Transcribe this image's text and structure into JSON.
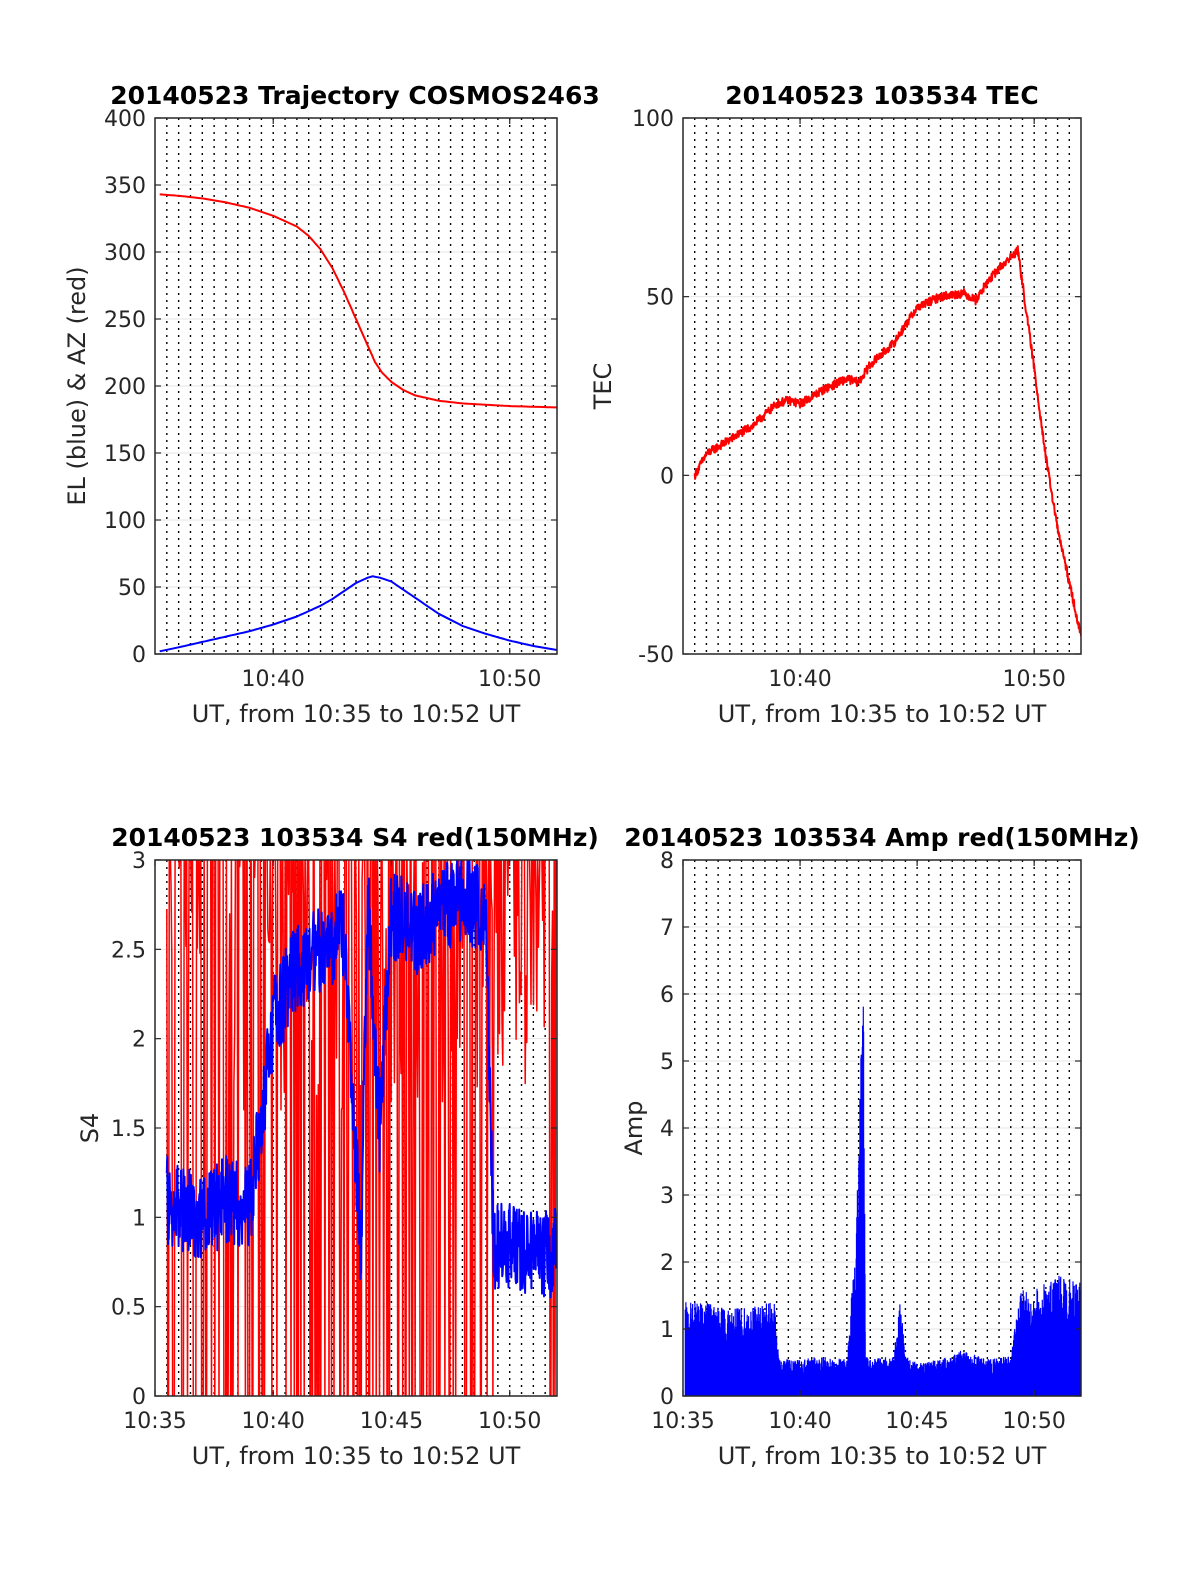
{
  "chart_data": [
    {
      "type": "line",
      "title": "20140523 Trajectory COSMOS2463",
      "xlabel": "UT, from 10:35 to 10:52 UT",
      "ylabel": "EL (blue) & AZ (red)",
      "xlim": [
        35,
        52
      ],
      "ylim": [
        0,
        400
      ],
      "x_ticks": [
        {
          "value": 40,
          "label": "10:40"
        },
        {
          "value": 50,
          "label": "10:50"
        }
      ],
      "y_ticks": [
        0,
        50,
        100,
        150,
        200,
        250,
        300,
        350,
        400
      ],
      "grid": "dotted vertical lines every 0.5 minute, horizontal gridlines at y ticks",
      "series": [
        {
          "color": "#ff0000",
          "x": [
            35.2,
            36,
            37,
            38,
            39,
            40,
            41,
            41.5,
            42,
            42.5,
            43,
            43.5,
            44,
            44.3,
            44.6,
            45,
            45.5,
            46,
            46.5,
            47,
            48,
            49,
            50,
            51,
            52
          ],
          "values": [
            343,
            342,
            340,
            337,
            333,
            327,
            319,
            312,
            302,
            288,
            270,
            250,
            230,
            218,
            210,
            203,
            197,
            193,
            191,
            189,
            187,
            186,
            185,
            184.5,
            184
          ]
        },
        {
          "color": "#0000ff",
          "x": [
            35.2,
            36,
            37,
            38,
            39,
            40,
            41,
            42,
            42.5,
            43,
            43.5,
            44,
            44.2,
            44.5,
            45,
            45.5,
            46,
            46.5,
            47,
            48,
            49,
            50,
            51,
            52
          ],
          "values": [
            2,
            5,
            9,
            13,
            17,
            22,
            28,
            36,
            41,
            47,
            53,
            57,
            58,
            57,
            54,
            48,
            42,
            36,
            30,
            21,
            15,
            10,
            6,
            3
          ]
        }
      ]
    },
    {
      "type": "line",
      "title": "20140523 103534 TEC",
      "xlabel": "UT, from 10:35 to 10:52 UT",
      "ylabel": "TEC",
      "xlim": [
        35,
        52
      ],
      "ylim": [
        -50,
        100
      ],
      "x_ticks": [
        {
          "value": 40,
          "label": "10:40"
        },
        {
          "value": 50,
          "label": "10:50"
        }
      ],
      "y_ticks": [
        -50,
        0,
        50,
        100
      ],
      "grid": "dotted vertical lines every 0.5 minute, horizontal gridlines at y ticks",
      "series": [
        {
          "color": "#ff0000",
          "x": [
            35.5,
            36,
            37,
            38,
            39,
            39.5,
            40,
            41,
            42,
            42.5,
            43,
            44,
            44.5,
            45,
            46,
            47,
            47.5,
            48,
            48.5,
            49,
            49.3,
            50,
            50.5,
            51,
            51.5,
            52
          ],
          "values": [
            0,
            6,
            10,
            14,
            20,
            21,
            20,
            24,
            27,
            26,
            31,
            37,
            42,
            47,
            50,
            51,
            49,
            54,
            58,
            61,
            63,
            30,
            5,
            -15,
            -30,
            -45
          ]
        }
      ]
    },
    {
      "type": "line",
      "title": "20140523 103534 S4 red(150MHz)",
      "xlabel": "UT, from 10:35 to 10:52 UT",
      "ylabel": "S4",
      "xlim": [
        35,
        52
      ],
      "ylim": [
        0,
        3
      ],
      "x_ticks": [
        {
          "value": 35,
          "label": "10:35"
        },
        {
          "value": 40,
          "label": "10:40"
        },
        {
          "value": 45,
          "label": "10:45"
        },
        {
          "value": 50,
          "label": "10:50"
        }
      ],
      "y_ticks": [
        {
          "value": 0,
          "label": "0"
        },
        {
          "value": 0.5,
          "label": "0.5"
        },
        {
          "value": 1,
          "label": "1"
        },
        {
          "value": 1.5,
          "label": "1.5"
        },
        {
          "value": 2,
          "label": "2"
        },
        {
          "value": 2.5,
          "label": "2.5"
        },
        {
          "value": 3,
          "label": "3"
        }
      ],
      "grid": "dotted vertical lines every 0.5 minute, horizontal gridlines at y ticks",
      "series": [
        {
          "color": "#ff0000",
          "description_shape": "dense oscillation between 0 and 3 across 10:35-10:52"
        },
        {
          "color": "#0000ff",
          "x": [
            35.5,
            36,
            37,
            38,
            39,
            40,
            41,
            42,
            43,
            43.7,
            44,
            44.5,
            45,
            46,
            47,
            48,
            49,
            49.3,
            50,
            51,
            52
          ],
          "values": [
            1.1,
            1.05,
            1.0,
            1.1,
            1.05,
            2.1,
            2.4,
            2.5,
            2.6,
            0.8,
            2.8,
            1.5,
            2.7,
            2.6,
            2.7,
            2.8,
            2.7,
            0.85,
            0.85,
            0.8,
            0.8
          ]
        }
      ]
    },
    {
      "type": "line",
      "title": "20140523 103534 Amp red(150MHz)",
      "xlabel": "UT, from 10:35 to 10:52 UT",
      "ylabel": "Amp",
      "xlim": [
        35,
        52
      ],
      "ylim": [
        0,
        8
      ],
      "x_ticks": [
        {
          "value": 35,
          "label": "10:35"
        },
        {
          "value": 40,
          "label": "10:40"
        },
        {
          "value": 45,
          "label": "10:45"
        },
        {
          "value": 50,
          "label": "10:50"
        }
      ],
      "y_ticks": [
        0,
        1,
        2,
        3,
        4,
        5,
        6,
        7,
        8
      ],
      "grid": "dotted vertical lines every 0.5 minute, horizontal gridlines at y ticks",
      "series": [
        {
          "color": "#0000ff",
          "x": [
            35.1,
            36,
            37,
            38,
            38.9,
            39.1,
            40,
            41,
            42,
            42.4,
            42.6,
            42.7,
            42.8,
            43,
            44,
            44.3,
            44.5,
            45,
            46,
            47,
            48,
            49,
            49.4,
            50,
            51,
            52
          ],
          "values": [
            1.4,
            1.4,
            1.3,
            1.35,
            1.4,
            0.55,
            0.55,
            0.6,
            0.55,
            2.5,
            5.2,
            6.2,
            0.6,
            0.55,
            0.6,
            1.5,
            0.6,
            0.5,
            0.55,
            0.7,
            0.55,
            0.6,
            1.6,
            1.6,
            1.8,
            1.7
          ]
        }
      ]
    }
  ]
}
